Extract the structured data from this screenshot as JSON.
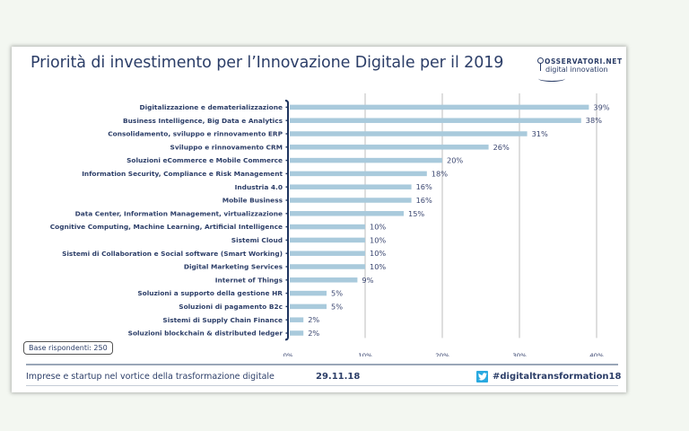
{
  "slide": {
    "title": "Priorità di investimento per l’Innovazione Digitale per il 2019",
    "logo": {
      "line1": "OSSERVATORI.NET",
      "line2": "digital innovation",
      "icon": "location-pin-icon"
    },
    "base_note": "Base rispondenti: 250",
    "footer": {
      "text": "Imprese e startup nel vortice della trasformazione digitale",
      "date": "29.11.18",
      "social_icon": "twitter-icon",
      "hashtag": "#digitaltransformation18"
    }
  },
  "colors": {
    "bar": "#a9cadc",
    "axis": "#1f3560",
    "grid": "#bdbdbd",
    "text": "#2c3e68",
    "twitter": "#29a9e0",
    "background": "#f3f7f1"
  },
  "chart_data": {
    "type": "bar",
    "orientation": "horizontal",
    "title": "Priorità di investimento per l’Innovazione Digitale per il 2019",
    "xlabel": "",
    "ylabel": "",
    "xlim": [
      0,
      40
    ],
    "x_ticks": [
      "0%",
      "10%",
      "20%",
      "30%",
      "40%"
    ],
    "x_tick_values": [
      0,
      10,
      20,
      30,
      40
    ],
    "grid": true,
    "legend": "none",
    "categories": [
      "Digitalizzazione e dematerializzazione",
      "Business Intelligence, Big Data e Analytics",
      "Consolidamento, sviluppo e rinnovamento ERP",
      "Sviluppo e rinnovamento CRM",
      "Soluzioni eCommerce e Mobile Commerce",
      "Information Security, Compliance e Risk Management",
      "Industria 4.0",
      "Mobile Business",
      "Data Center, Information Management, virtualizzazione",
      "Cognitive Computing, Machine Learning, Artificial Intelligence",
      "Sistemi Cloud",
      "Sistemi di Collaboration e Social software (Smart Working)",
      "Digital Marketing Services",
      "Internet of Things",
      "Soluzioni a supporto della gestione HR",
      "Soluzioni di pagamento B2c",
      "Sistemi di Supply Chain Finance",
      "Soluzioni blockchain & distributed ledger"
    ],
    "values": [
      39,
      38,
      31,
      26,
      20,
      18,
      16,
      16,
      15,
      10,
      10,
      10,
      10,
      9,
      5,
      5,
      2,
      2
    ],
    "value_labels": [
      "39%",
      "38%",
      "31%",
      "26%",
      "20%",
      "18%",
      "16%",
      "16%",
      "15%",
      "10%",
      "10%",
      "10%",
      "10%",
      "9%",
      "5%",
      "5%",
      "2%",
      "2%"
    ]
  }
}
